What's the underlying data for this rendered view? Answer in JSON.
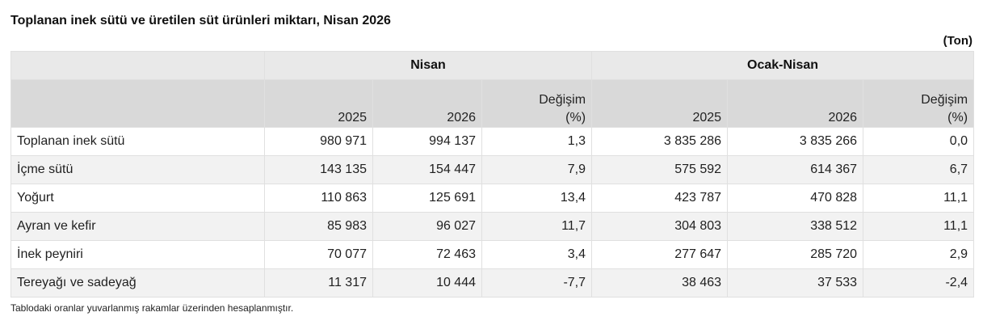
{
  "title": "Toplanan inek sütü ve üretilen süt ürünleri miktarı, Nisan 2026",
  "unit": "(Ton)",
  "header": {
    "group1": "Nisan",
    "group2": "Ocak-Nisan",
    "year1": "2025",
    "year2": "2026",
    "change_line1": "Değişim",
    "change_line2": "(%)"
  },
  "rows": [
    {
      "label": "Toplanan inek sütü",
      "values": [
        "980 971",
        "994 137",
        "1,3",
        "3 835 286",
        "3 835 266",
        "0,0"
      ]
    },
    {
      "label": "İçme sütü",
      "values": [
        "143 135",
        "154 447",
        "7,9",
        "575 592",
        "614 367",
        "6,7"
      ]
    },
    {
      "label": "Yoğurt",
      "values": [
        "110 863",
        "125 691",
        "13,4",
        "423 787",
        "470 828",
        "11,1"
      ]
    },
    {
      "label": "Ayran ve kefir",
      "values": [
        "85 983",
        "96 027",
        "11,7",
        "304 803",
        "338 512",
        "11,1"
      ]
    },
    {
      "label": "İnek peyniri",
      "values": [
        "70 077",
        "72 463",
        "3,4",
        "277 647",
        "285 720",
        "2,9"
      ]
    },
    {
      "label": "Tereyağı ve sadeyağ",
      "values": [
        "11 317",
        "10 444",
        "-7,7",
        "38 463",
        "37 533",
        "-2,4"
      ]
    }
  ],
  "note": "Tablodaki oranlar yuvarlanmış rakamlar üzerinden hesaplanmıştır."
}
